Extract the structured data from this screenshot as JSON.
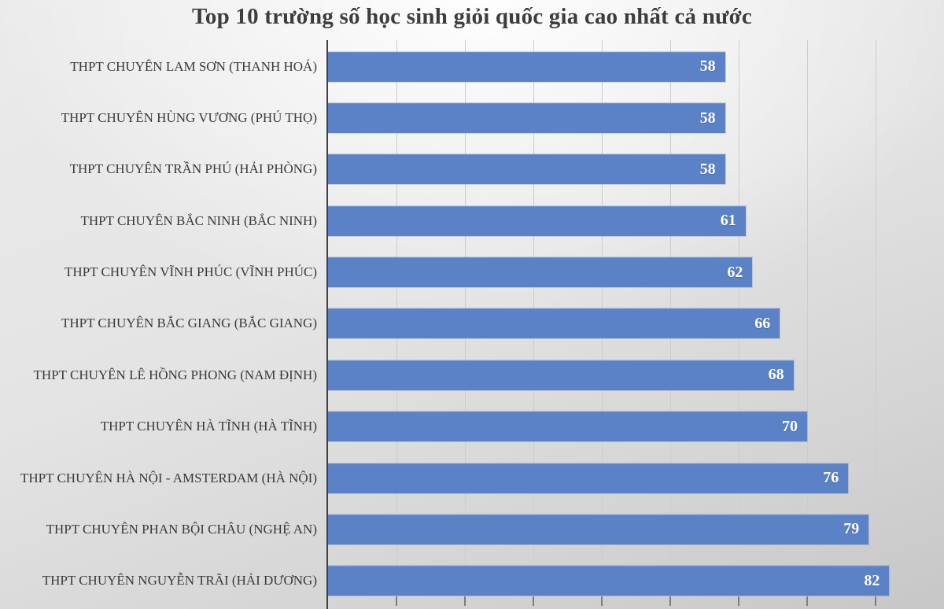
{
  "chart_data": {
    "type": "bar",
    "orientation": "horizontal",
    "title": "Top 10 trường số học sinh giỏi quốc gia cao nhất cả nước",
    "categories": [
      "THPT CHUYÊN LAM SƠN (THANH HOÁ)",
      "THPT CHUYÊN HÙNG VƯƠNG (PHÚ THỌ)",
      "THPT CHUYÊN TRẦN PHÚ (HẢI PHÒNG)",
      "THPT CHUYÊN BẮC NINH (BẮC NINH)",
      "THPT CHUYÊN VĨNH PHÚC (VĨNH PHÚC)",
      "THPT CHUYÊN BẮC GIANG (BẮC GIANG)",
      "THPT CHUYÊN LÊ HỒNG PHONG (NAM ĐỊNH)",
      "THPT CHUYÊN HÀ TĨNH (HÀ TĨNH)",
      "THPT CHUYÊN HÀ NỘI - AMSTERDAM (HÀ NỘI)",
      "THPT CHUYÊN PHAN BỘI CHÂU (NGHỆ AN)",
      "THPT CHUYÊN NGUYỄN TRÃI (HẢI DƯƠNG)"
    ],
    "values": [
      58,
      58,
      58,
      61,
      62,
      66,
      68,
      70,
      76,
      79,
      82
    ],
    "xlabel": "",
    "ylabel": "",
    "xlim": [
      0,
      90
    ],
    "gridline_interval": 10,
    "grid": true,
    "legend": false,
    "bar_color": "#5b81c6",
    "value_label_color": "#ffffff",
    "title_color": "#3d3d3d",
    "category_label_color": "#3a3a3a"
  }
}
